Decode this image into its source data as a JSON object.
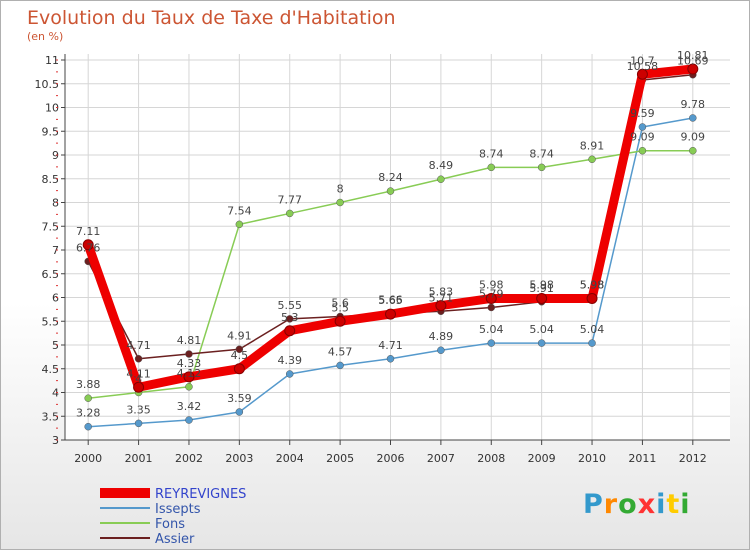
{
  "title": "Evolution du Taux de Taxe d'Habitation",
  "subtitle": "(en %)",
  "logo": {
    "text": "Proxiti",
    "colors": [
      "#3399cc",
      "#ff8800",
      "#33aa33",
      "#ff3333",
      "#3399cc",
      "#ffcc00",
      "#33aa33"
    ]
  },
  "chart_data": {
    "type": "line",
    "title": "Evolution du Taux de Taxe d'Habitation",
    "subtitle": "(en %)",
    "ylim": [
      3,
      11
    ],
    "y_ticks": [
      "3",
      "3.5",
      "4",
      "4.5",
      "5",
      "5.5",
      "6",
      "6.5",
      "7",
      "7.5",
      "8",
      "8.5",
      "9",
      "9.5",
      "10",
      "10.5",
      "11"
    ],
    "x": [
      "2000",
      "2001",
      "2002",
      "2003",
      "2004",
      "2005",
      "2006",
      "2007",
      "2008",
      "2009",
      "2010",
      "2011",
      "2012"
    ],
    "grid": true,
    "legend": "bottom-left",
    "series": [
      {
        "name": "REYREVIGNES",
        "color": "#ee0000",
        "values": [
          7.11,
          4.11,
          4.33,
          4.5,
          5.3,
          5.5,
          5.65,
          5.83,
          5.98,
          5.98,
          5.98,
          10.7,
          10.81
        ],
        "labels": [
          "7.11",
          "4.11",
          "4.33",
          "4.5",
          "5.3",
          "5.5",
          "5.65",
          "5.83",
          "5.98",
          "5.98",
          "5.98",
          "10.7",
          "10.81"
        ]
      },
      {
        "name": "Issepts",
        "color": "#5599cc",
        "values": [
          3.28,
          3.35,
          3.42,
          3.59,
          4.39,
          4.57,
          4.71,
          4.89,
          5.04,
          5.04,
          5.04,
          9.59,
          9.78
        ],
        "labels": [
          "3.28",
          "3.35",
          "3.42",
          "3.59",
          "4.39",
          "4.57",
          "4.71",
          "4.89",
          "5.04",
          "5.04",
          "5.04",
          "9.59",
          "9.78"
        ]
      },
      {
        "name": "Fons",
        "color": "#88cc55",
        "values": [
          3.88,
          4.0,
          4.12,
          7.54,
          7.77,
          8.0,
          8.24,
          8.49,
          8.74,
          8.74,
          8.91,
          9.09,
          9.09
        ],
        "labels": [
          "3.88",
          "4",
          "4.12",
          "7.54",
          "7.77",
          "8",
          "8.24",
          "8.49",
          "8.74",
          "8.74",
          "8.91",
          "9.09",
          "9.09"
        ]
      },
      {
        "name": "Assier",
        "color": "#6b2020",
        "values": [
          6.76,
          4.71,
          4.81,
          4.91,
          5.55,
          5.6,
          5.66,
          5.71,
          5.79,
          5.91,
          5.98,
          10.58,
          10.69
        ],
        "labels": [
          "6.76",
          "4.71",
          "4.81",
          "4.91",
          "5.55",
          "5.6",
          "5.66",
          "5.71",
          "5.79",
          "5.91",
          "5.98",
          "10.58",
          "10.69"
        ]
      }
    ]
  }
}
